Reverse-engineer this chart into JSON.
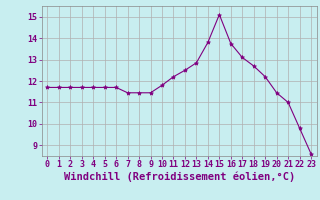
{
  "x": [
    0,
    1,
    2,
    3,
    4,
    5,
    6,
    7,
    8,
    9,
    10,
    11,
    12,
    13,
    14,
    15,
    16,
    17,
    18,
    19,
    20,
    21,
    22,
    23
  ],
  "y": [
    11.7,
    11.7,
    11.7,
    11.7,
    11.7,
    11.7,
    11.7,
    11.45,
    11.45,
    11.45,
    11.8,
    12.2,
    12.5,
    12.85,
    13.8,
    15.1,
    13.75,
    13.1,
    12.7,
    12.2,
    11.45,
    11.0,
    9.8,
    8.6
  ],
  "line_color": "#800080",
  "marker": "*",
  "marker_color": "#800080",
  "bg_color": "#c8eef0",
  "grid_color": "#b0b0b0",
  "xlabel": "Windchill (Refroidissement éolien,°C)",
  "xlabel_color": "#800080",
  "tick_color": "#800080",
  "ylim": [
    8.5,
    15.5
  ],
  "xlim": [
    -0.5,
    23.5
  ],
  "yticks": [
    9,
    10,
    11,
    12,
    13,
    14,
    15
  ],
  "xticks": [
    0,
    1,
    2,
    3,
    4,
    5,
    6,
    7,
    8,
    9,
    10,
    11,
    12,
    13,
    14,
    15,
    16,
    17,
    18,
    19,
    20,
    21,
    22,
    23
  ],
  "tick_fontsize": 6,
  "xlabel_fontsize": 7.5
}
